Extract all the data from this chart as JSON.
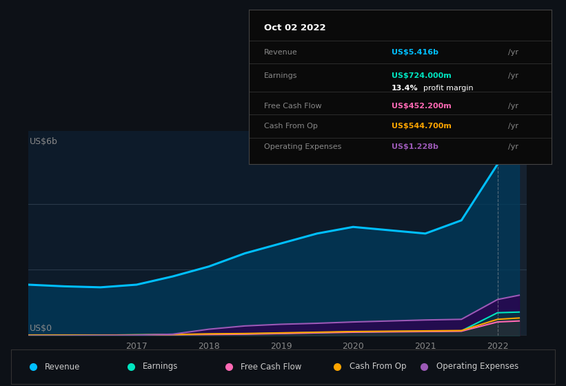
{
  "background_color": "#0d1117",
  "plot_bg_color": "#0d1b2a",
  "ylabel": "US$6b",
  "y0label": "US$0",
  "tooltip_box": {
    "date": "Oct 02 2022",
    "revenue_label": "Revenue",
    "revenue_val": "US$5.416b /yr",
    "earnings_label": "Earnings",
    "earnings_val": "US$724.000m /yr",
    "margin_val": "13.4% profit margin",
    "fcf_label": "Free Cash Flow",
    "fcf_val": "US$452.200m /yr",
    "cashop_label": "Cash From Op",
    "cashop_val": "US$544.700m /yr",
    "opex_label": "Operating Expenses",
    "opex_val": "US$1.228b /yr"
  },
  "revenue_color": "#00bfff",
  "earnings_color": "#00e5c0",
  "fcf_color": "#ff69b4",
  "cashop_color": "#ffa500",
  "opex_color": "#9b59b6",
  "legend_items": [
    "Revenue",
    "Earnings",
    "Free Cash Flow",
    "Cash From Op",
    "Operating Expenses"
  ],
  "legend_colors": [
    "#00bfff",
    "#00e5c0",
    "#ff69b4",
    "#ffa500",
    "#9b59b6"
  ],
  "highlight_x": 2022.0,
  "years": [
    2015.5,
    2016.0,
    2016.5,
    2017.0,
    2017.5,
    2018.0,
    2018.5,
    2019.0,
    2019.5,
    2020.0,
    2020.5,
    2021.0,
    2021.5,
    2022.0,
    2022.3
  ],
  "revenue": [
    1.55,
    1.5,
    1.47,
    1.55,
    1.8,
    2.1,
    2.5,
    2.8,
    3.1,
    3.3,
    3.2,
    3.1,
    3.5,
    5.2,
    5.8
  ],
  "earnings": [
    0.02,
    0.02,
    0.02,
    0.03,
    0.04,
    0.05,
    0.06,
    0.08,
    0.1,
    0.12,
    0.13,
    0.14,
    0.15,
    0.7,
    0.72
  ],
  "fcf": [
    0.01,
    0.01,
    0.01,
    0.02,
    0.03,
    0.04,
    0.05,
    0.07,
    0.09,
    0.11,
    0.12,
    0.13,
    0.14,
    0.42,
    0.45
  ],
  "cashop": [
    0.02,
    0.02,
    0.02,
    0.03,
    0.04,
    0.06,
    0.07,
    0.09,
    0.11,
    0.13,
    0.14,
    0.15,
    0.16,
    0.5,
    0.54
  ],
  "opex": [
    0.0,
    0.0,
    0.01,
    0.02,
    0.05,
    0.2,
    0.3,
    0.35,
    0.38,
    0.42,
    0.45,
    0.48,
    0.5,
    1.1,
    1.23
  ],
  "ylim": [
    0,
    6.2
  ],
  "xlim": [
    2015.5,
    2022.4
  ],
  "tooltip_dividers": [
    0.8,
    0.65,
    0.47,
    0.32,
    0.17
  ]
}
